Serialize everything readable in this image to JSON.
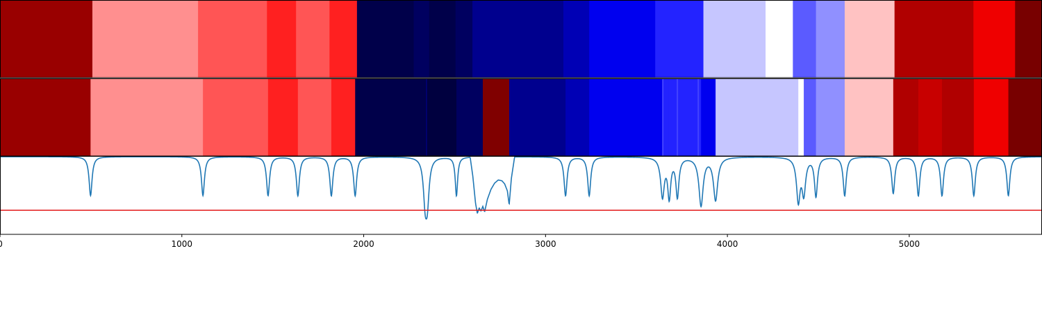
{
  "chart_data": {
    "type": "heatmap",
    "xlim": [
      0,
      5730
    ],
    "x_ticks": [
      {
        "value": 0,
        "label": "0"
      },
      {
        "value": 1000,
        "label": "1000"
      },
      {
        "value": 2000,
        "label": "2000"
      },
      {
        "value": 3000,
        "label": "3000"
      },
      {
        "value": 4000,
        "label": "4000"
      },
      {
        "value": 5000,
        "label": "5000"
      }
    ],
    "row1_segments": [
      {
        "start": 0,
        "end": 508,
        "color": "#990000"
      },
      {
        "start": 508,
        "end": 1089,
        "color": "#ff8f8f"
      },
      {
        "start": 1089,
        "end": 1468,
        "color": "#ff5555"
      },
      {
        "start": 1468,
        "end": 1628,
        "color": "#ff2020"
      },
      {
        "start": 1628,
        "end": 1812,
        "color": "#ff5555"
      },
      {
        "start": 1812,
        "end": 1963,
        "color": "#ff2020"
      },
      {
        "start": 1963,
        "end": 2275,
        "color": "#00004a"
      },
      {
        "start": 2275,
        "end": 2360,
        "color": "#000060"
      },
      {
        "start": 2360,
        "end": 2505,
        "color": "#00004a"
      },
      {
        "start": 2505,
        "end": 2598,
        "color": "#000060"
      },
      {
        "start": 2598,
        "end": 3098,
        "color": "#00008e"
      },
      {
        "start": 3098,
        "end": 3240,
        "color": "#0000b5"
      },
      {
        "start": 3240,
        "end": 3603,
        "color": "#0000ef"
      },
      {
        "start": 3603,
        "end": 3868,
        "color": "#2323ff"
      },
      {
        "start": 3868,
        "end": 4210,
        "color": "#c6c6ff"
      },
      {
        "start": 4210,
        "end": 4360,
        "color": "#ffffff"
      },
      {
        "start": 4360,
        "end": 4487,
        "color": "#5b5bff"
      },
      {
        "start": 4487,
        "end": 4645,
        "color": "#9090ff"
      },
      {
        "start": 4645,
        "end": 4919,
        "color": "#ffc2c2"
      },
      {
        "start": 4919,
        "end": 5353,
        "color": "#b00000"
      },
      {
        "start": 5353,
        "end": 5582,
        "color": "#ef0000"
      },
      {
        "start": 5582,
        "end": 5730,
        "color": "#780000"
      }
    ],
    "row2_segments": [
      {
        "start": 0,
        "end": 498,
        "color": "#990000"
      },
      {
        "start": 498,
        "end": 1116,
        "color": "#ff8f8f"
      },
      {
        "start": 1116,
        "end": 1474,
        "color": "#ff5555"
      },
      {
        "start": 1474,
        "end": 1638,
        "color": "#ff2020"
      },
      {
        "start": 1638,
        "end": 1822,
        "color": "#ff5555"
      },
      {
        "start": 1822,
        "end": 1953,
        "color": "#ff2020"
      },
      {
        "start": 1953,
        "end": 2338,
        "color": "#00004a"
      },
      {
        "start": 2338,
        "end": 2510,
        "color": "#00003f"
      },
      {
        "start": 2510,
        "end": 2655,
        "color": "#000060"
      },
      {
        "start": 2655,
        "end": 2800,
        "color": "#800000"
      },
      {
        "start": 2800,
        "end": 3110,
        "color": "#00008e"
      },
      {
        "start": 3110,
        "end": 3240,
        "color": "#0000b5"
      },
      {
        "start": 3240,
        "end": 3643,
        "color": "#0000ef"
      },
      {
        "start": 3643,
        "end": 3855,
        "color": "#2323ff"
      },
      {
        "start": 3855,
        "end": 3935,
        "color": "#0000ef"
      },
      {
        "start": 3935,
        "end": 4390,
        "color": "#c6c6ff"
      },
      {
        "start": 4390,
        "end": 4420,
        "color": "#ffffff"
      },
      {
        "start": 4420,
        "end": 4487,
        "color": "#5b5bff"
      },
      {
        "start": 4487,
        "end": 4645,
        "color": "#9090ff"
      },
      {
        "start": 4645,
        "end": 4912,
        "color": "#ffc2c2"
      },
      {
        "start": 4912,
        "end": 5050,
        "color": "#b00000"
      },
      {
        "start": 5050,
        "end": 5180,
        "color": "#c80000"
      },
      {
        "start": 5180,
        "end": 5355,
        "color": "#b00000"
      },
      {
        "start": 5355,
        "end": 5545,
        "color": "#ef0000"
      },
      {
        "start": 5545,
        "end": 5730,
        "color": "#780000"
      }
    ],
    "row2_thin_lines": [
      {
        "x": 2345,
        "color": "#000070"
      },
      {
        "x": 3645,
        "color": "#4444ff"
      },
      {
        "x": 3680,
        "color": "#2323ff"
      },
      {
        "x": 3725,
        "color": "#4444ff"
      },
      {
        "x": 3840,
        "color": "#4444ff"
      }
    ],
    "signal": {
      "ylim": [
        0,
        1
      ],
      "threshold": 0.31,
      "baseline": 1.0,
      "threshold_color": "#e31a1c",
      "line_color": "#1f77b4",
      "dips": [
        {
          "x": 498,
          "depth": 0.5,
          "width": 10
        },
        {
          "x": 1116,
          "depth": 0.5,
          "width": 10
        },
        {
          "x": 1474,
          "depth": 0.5,
          "width": 10
        },
        {
          "x": 1638,
          "depth": 0.5,
          "width": 10
        },
        {
          "x": 1822,
          "depth": 0.5,
          "width": 10
        },
        {
          "x": 1953,
          "depth": 0.5,
          "width": 10
        },
        {
          "x": 2338,
          "depth": 0.5,
          "width": 12
        },
        {
          "x": 2350,
          "depth": 0.5,
          "width": 12
        },
        {
          "x": 2510,
          "depth": 0.5,
          "width": 8
        },
        {
          "x": 3110,
          "depth": 0.5,
          "width": 10
        },
        {
          "x": 3240,
          "depth": 0.5,
          "width": 10
        },
        {
          "x": 3643,
          "depth": 0.5,
          "width": 12
        },
        {
          "x": 3680,
          "depth": 0.5,
          "width": 10
        },
        {
          "x": 3725,
          "depth": 0.5,
          "width": 10
        },
        {
          "x": 3855,
          "depth": 0.62,
          "width": 14
        },
        {
          "x": 3935,
          "depth": 0.55,
          "width": 14
        },
        {
          "x": 4390,
          "depth": 0.55,
          "width": 12
        },
        {
          "x": 4420,
          "depth": 0.45,
          "width": 12
        },
        {
          "x": 4487,
          "depth": 0.5,
          "width": 10
        },
        {
          "x": 4645,
          "depth": 0.5,
          "width": 10
        },
        {
          "x": 4912,
          "depth": 0.47,
          "width": 10
        },
        {
          "x": 5050,
          "depth": 0.5,
          "width": 10
        },
        {
          "x": 5180,
          "depth": 0.5,
          "width": 10
        },
        {
          "x": 5355,
          "depth": 0.5,
          "width": 10
        },
        {
          "x": 5545,
          "depth": 0.5,
          "width": 10
        }
      ],
      "bump": [
        [
          2585,
          1.0
        ],
        [
          2600,
          0.75
        ],
        [
          2615,
          0.4
        ],
        [
          2625,
          0.27
        ],
        [
          2635,
          0.34
        ],
        [
          2645,
          0.3
        ],
        [
          2655,
          0.36
        ],
        [
          2665,
          0.29
        ],
        [
          2680,
          0.45
        ],
        [
          2700,
          0.58
        ],
        [
          2720,
          0.66
        ],
        [
          2740,
          0.7
        ],
        [
          2760,
          0.69
        ],
        [
          2775,
          0.65
        ],
        [
          2790,
          0.56
        ],
        [
          2800,
          0.38
        ],
        [
          2812,
          0.72
        ],
        [
          2830,
          1.0
        ]
      ]
    }
  }
}
